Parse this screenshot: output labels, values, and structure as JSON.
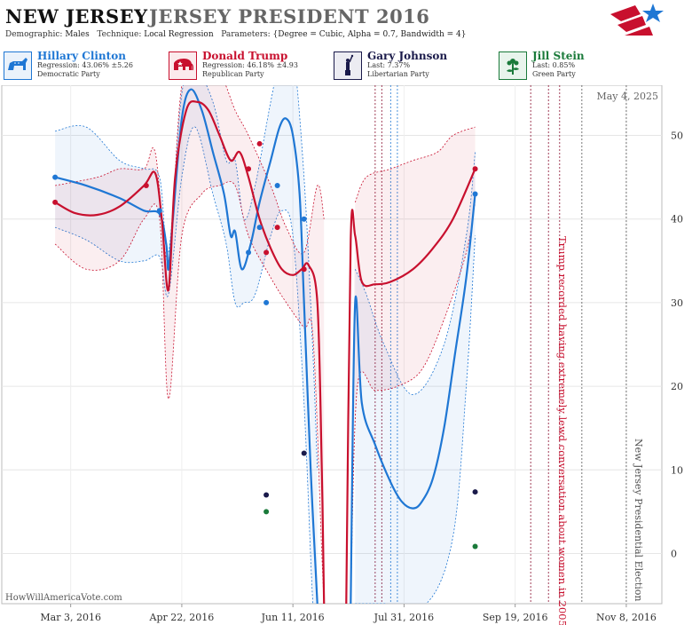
{
  "header": {
    "state": "NEW JERSEY",
    "race": "JERSEY PRESIDENT 2016",
    "demographic_label": "Demographic:",
    "demographic": "Males",
    "technique_label": "Technique:",
    "technique": "Local Regression",
    "parameters_label": "Parameters:",
    "parameters": "{Degree = Cubic, Alpha = 0.7, Bandwidth = 4}"
  },
  "candidates": [
    {
      "name": "Hillary Clinton",
      "stat": "Regression: 43.06% ±5.26",
      "party": "Democratic Party",
      "color": "#1f77d4",
      "icon": "donkey-icon"
    },
    {
      "name": "Donald Trump",
      "stat": "Regression: 46.18% ±4.93",
      "party": "Republican Party",
      "color": "#c8102e",
      "icon": "elephant-icon"
    },
    {
      "name": "Gary Johnson",
      "stat": "Last: 7.37%",
      "party": "Libertarian Party",
      "color": "#1a1a4a",
      "icon": "liberty-icon"
    },
    {
      "name": "Jill Stein",
      "stat": "Last: 0.85%",
      "party": "Green Party",
      "color": "#1a7a3a",
      "icon": "flower-icon"
    }
  ],
  "source": "HowWillAmericaVote.com",
  "chart_data": {
    "type": "line",
    "date_label": "May 4, 2025",
    "x_ticks": [
      "Mar 3, 2016",
      "Apr 22, 2016",
      "Jun 11, 2016",
      "Jul 31, 2016",
      "Sep 19, 2016",
      "Nov 8, 2016"
    ],
    "y_ticks": [
      0,
      10,
      20,
      30,
      40,
      50
    ],
    "ylim": [
      -6,
      56
    ],
    "xlim": [
      "2016-02-01",
      "2016-11-24"
    ],
    "annotations": [
      {
        "date": "2016-10-07",
        "text": "Trump recorded having extremely lewd conversation about women in 2005",
        "color": "#c8102e"
      },
      {
        "date": "2016-11-08",
        "text": "New Jersey Presidential Election",
        "color": "#555555"
      }
    ],
    "event_lines": [
      "2016-07-18",
      "2016-07-21",
      "2016-07-25",
      "2016-07-28",
      "2016-09-26",
      "2016-10-04",
      "2016-10-09",
      "2016-10-19",
      "2016-11-08"
    ],
    "series": [
      {
        "name": "Hillary Clinton",
        "color": "#1f77d4",
        "line": [
          [
            "2016-02-25",
            45
          ],
          [
            "2016-03-10",
            44
          ],
          [
            "2016-03-25",
            42.5
          ],
          [
            "2016-04-05",
            41
          ],
          [
            "2016-04-12",
            40.6
          ],
          [
            "2016-04-15",
            37
          ],
          [
            "2016-04-16",
            34
          ],
          [
            "2016-04-18",
            40
          ],
          [
            "2016-04-22",
            52
          ],
          [
            "2016-04-26",
            55.5
          ],
          [
            "2016-05-01",
            53
          ],
          [
            "2016-05-06",
            48
          ],
          [
            "2016-05-11",
            43
          ],
          [
            "2016-05-14",
            38
          ],
          [
            "2016-05-16",
            38.5
          ],
          [
            "2016-05-19",
            34
          ],
          [
            "2016-05-23",
            37
          ],
          [
            "2016-05-27",
            42
          ],
          [
            "2016-06-01",
            47
          ],
          [
            "2016-06-05",
            51
          ],
          [
            "2016-06-08",
            52
          ],
          [
            "2016-06-11",
            50
          ],
          [
            "2016-06-14",
            43
          ],
          [
            "2016-06-16",
            30
          ],
          [
            "2016-06-19",
            10
          ],
          [
            "2016-06-22",
            -6
          ]
        ],
        "line2": [
          [
            "2016-07-07",
            -6
          ],
          [
            "2016-07-09",
            30
          ],
          [
            "2016-07-12",
            18
          ],
          [
            "2016-07-18",
            13
          ],
          [
            "2016-07-25",
            8.5
          ],
          [
            "2016-07-30",
            6.2
          ],
          [
            "2016-08-04",
            5.4
          ],
          [
            "2016-08-08",
            6.2
          ],
          [
            "2016-08-13",
            9
          ],
          [
            "2016-08-18",
            15
          ],
          [
            "2016-08-23",
            24
          ],
          [
            "2016-08-28",
            33
          ],
          [
            "2016-09-01",
            43
          ]
        ],
        "upper": [
          [
            "2016-02-25",
            50.5
          ],
          [
            "2016-03-10",
            51
          ],
          [
            "2016-03-25",
            47
          ],
          [
            "2016-04-05",
            46
          ],
          [
            "2016-04-12",
            45
          ],
          [
            "2016-04-16",
            36
          ],
          [
            "2016-04-22",
            55
          ],
          [
            "2016-04-28",
            58
          ],
          [
            "2016-05-06",
            54
          ],
          [
            "2016-05-12",
            47
          ],
          [
            "2016-05-16",
            47
          ],
          [
            "2016-05-20",
            40
          ],
          [
            "2016-05-25",
            44
          ],
          [
            "2016-06-01",
            54
          ],
          [
            "2016-06-06",
            60
          ],
          [
            "2016-06-11",
            60
          ],
          [
            "2016-06-16",
            45
          ],
          [
            "2016-06-20",
            24
          ],
          [
            "2016-06-22",
            10
          ]
        ],
        "lower": [
          [
            "2016-02-25",
            39
          ],
          [
            "2016-03-10",
            37.5
          ],
          [
            "2016-03-25",
            35
          ],
          [
            "2016-04-05",
            35
          ],
          [
            "2016-04-12",
            35.5
          ],
          [
            "2016-04-16",
            31
          ],
          [
            "2016-04-22",
            45
          ],
          [
            "2016-04-28",
            51
          ],
          [
            "2016-05-06",
            43
          ],
          [
            "2016-05-12",
            37
          ],
          [
            "2016-05-16",
            30
          ],
          [
            "2016-05-20",
            30
          ],
          [
            "2016-05-25",
            31
          ],
          [
            "2016-06-01",
            38
          ],
          [
            "2016-06-06",
            41
          ],
          [
            "2016-06-11",
            38
          ],
          [
            "2016-06-16",
            18
          ],
          [
            "2016-06-20",
            -6
          ],
          [
            "2016-06-22",
            -6
          ]
        ],
        "upper2": [
          [
            "2016-07-09",
            34
          ],
          [
            "2016-07-14",
            31
          ],
          [
            "2016-07-22",
            25
          ],
          [
            "2016-08-04",
            19
          ],
          [
            "2016-08-18",
            25
          ],
          [
            "2016-08-28",
            38
          ],
          [
            "2016-09-01",
            48
          ]
        ],
        "lower2": [
          [
            "2016-07-09",
            -6
          ],
          [
            "2016-07-22",
            -6
          ],
          [
            "2016-08-10",
            -6
          ],
          [
            "2016-08-22",
            2
          ],
          [
            "2016-08-28",
            20
          ],
          [
            "2016-09-01",
            38
          ]
        ],
        "points": [
          [
            "2016-02-25",
            45
          ],
          [
            "2016-04-12",
            41
          ],
          [
            "2016-05-22",
            36
          ],
          [
            "2016-05-27",
            39
          ],
          [
            "2016-05-30",
            30
          ],
          [
            "2016-06-04",
            44
          ],
          [
            "2016-06-16",
            40
          ],
          [
            "2016-09-01",
            43
          ]
        ]
      },
      {
        "name": "Donald Trump",
        "color": "#c8102e",
        "line": [
          [
            "2016-02-25",
            42
          ],
          [
            "2016-03-05",
            40.7
          ],
          [
            "2016-03-15",
            40.5
          ],
          [
            "2016-03-25",
            41.5
          ],
          [
            "2016-04-05",
            44
          ],
          [
            "2016-04-10",
            45.5
          ],
          [
            "2016-04-13",
            40
          ],
          [
            "2016-04-16",
            31.5
          ],
          [
            "2016-04-19",
            45
          ],
          [
            "2016-04-24",
            53
          ],
          [
            "2016-04-29",
            54
          ],
          [
            "2016-05-04",
            53
          ],
          [
            "2016-05-09",
            50
          ],
          [
            "2016-05-14",
            47
          ],
          [
            "2016-05-18",
            48
          ],
          [
            "2016-05-22",
            45
          ],
          [
            "2016-05-27",
            40
          ],
          [
            "2016-06-01",
            36.5
          ],
          [
            "2016-06-06",
            34
          ],
          [
            "2016-06-11",
            33.3
          ],
          [
            "2016-06-15",
            34
          ],
          [
            "2016-06-18",
            34.5
          ],
          [
            "2016-06-22",
            30
          ],
          [
            "2016-06-24",
            10
          ],
          [
            "2016-06-25",
            -6
          ]
        ],
        "line2": [
          [
            "2016-07-05",
            -6
          ],
          [
            "2016-07-07",
            37.5
          ],
          [
            "2016-07-09",
            38
          ],
          [
            "2016-07-12",
            32.5
          ],
          [
            "2016-07-18",
            32.2
          ],
          [
            "2016-07-25",
            32.5
          ],
          [
            "2016-08-04",
            34
          ],
          [
            "2016-08-13",
            36.5
          ],
          [
            "2016-08-22",
            40
          ],
          [
            "2016-09-01",
            46
          ]
        ],
        "upper": [
          [
            "2016-02-25",
            44
          ],
          [
            "2016-03-15",
            45
          ],
          [
            "2016-03-25",
            46
          ],
          [
            "2016-04-05",
            46
          ],
          [
            "2016-04-10",
            48
          ],
          [
            "2016-04-16",
            35
          ],
          [
            "2016-04-22",
            56
          ],
          [
            "2016-05-01",
            60
          ],
          [
            "2016-05-10",
            57
          ],
          [
            "2016-05-16",
            53
          ],
          [
            "2016-05-22",
            50
          ],
          [
            "2016-06-01",
            44
          ],
          [
            "2016-06-08",
            39
          ],
          [
            "2016-06-16",
            36
          ],
          [
            "2016-06-22",
            44
          ],
          [
            "2016-06-25",
            40
          ]
        ],
        "lower": [
          [
            "2016-02-25",
            37
          ],
          [
            "2016-03-10",
            34
          ],
          [
            "2016-03-25",
            35
          ],
          [
            "2016-04-05",
            40
          ],
          [
            "2016-04-12",
            40
          ],
          [
            "2016-04-16",
            18.5
          ],
          [
            "2016-04-22",
            38
          ],
          [
            "2016-05-01",
            43
          ],
          [
            "2016-05-09",
            44
          ],
          [
            "2016-05-16",
            44
          ],
          [
            "2016-05-22",
            38
          ],
          [
            "2016-06-01",
            33
          ],
          [
            "2016-06-08",
            30
          ],
          [
            "2016-06-16",
            27
          ],
          [
            "2016-06-20",
            26
          ],
          [
            "2016-06-24",
            0
          ],
          [
            "2016-06-25",
            -6
          ]
        ],
        "upper2": [
          [
            "2016-07-09",
            42
          ],
          [
            "2016-07-14",
            45
          ],
          [
            "2016-07-25",
            46
          ],
          [
            "2016-08-04",
            47
          ],
          [
            "2016-08-15",
            48
          ],
          [
            "2016-08-22",
            50
          ],
          [
            "2016-09-01",
            51
          ]
        ],
        "lower2": [
          [
            "2016-07-07",
            -6
          ],
          [
            "2016-07-10",
            20
          ],
          [
            "2016-07-18",
            19.5
          ],
          [
            "2016-07-28",
            20
          ],
          [
            "2016-08-08",
            22
          ],
          [
            "2016-08-18",
            28
          ],
          [
            "2016-08-28",
            36
          ],
          [
            "2016-09-01",
            42
          ]
        ],
        "points": [
          [
            "2016-02-25",
            42
          ],
          [
            "2016-04-06",
            44
          ],
          [
            "2016-05-22",
            46
          ],
          [
            "2016-05-27",
            49
          ],
          [
            "2016-05-30",
            36
          ],
          [
            "2016-06-04",
            39
          ],
          [
            "2016-06-16",
            34
          ],
          [
            "2016-09-01",
            46
          ]
        ]
      },
      {
        "name": "Gary Johnson",
        "color": "#1a1a4a",
        "points": [
          [
            "2016-05-30",
            7
          ],
          [
            "2016-06-16",
            12
          ],
          [
            "2016-09-01",
            7.37
          ]
        ]
      },
      {
        "name": "Jill Stein",
        "color": "#1a7a3a",
        "points": [
          [
            "2016-05-30",
            5
          ],
          [
            "2016-09-01",
            0.85
          ]
        ]
      }
    ]
  }
}
